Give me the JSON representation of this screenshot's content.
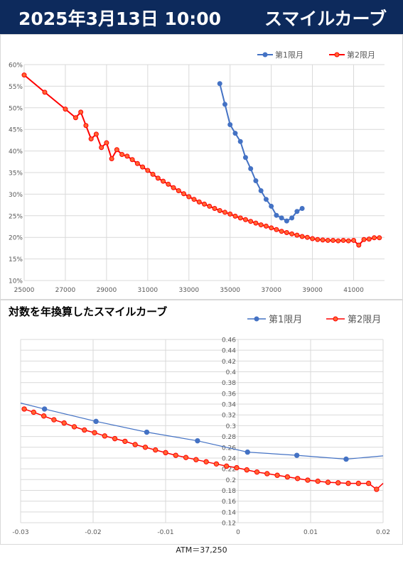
{
  "header": {
    "date": "2025年3月13日 10:00",
    "title": "スマイルカーブ"
  },
  "colors": {
    "header_bg": "#0d2a5c",
    "series_1": "#4472c4",
    "series_2": "#ff0000",
    "series_2_marker_fill": "#ff6633",
    "grid": "#d9d9d9"
  },
  "chart_data": [
    {
      "type": "line",
      "title": "",
      "xlabel": "",
      "ylabel": "",
      "xlim": [
        25000,
        42500
      ],
      "ylim": [
        0.1,
        0.6
      ],
      "x_ticks": [
        25000,
        27000,
        29000,
        31000,
        33000,
        35000,
        37000,
        39000,
        41000
      ],
      "x_tick_labels": [
        "25000",
        "27000",
        "29000",
        "31000",
        "33000",
        "35000",
        "37000",
        "39000",
        "41000"
      ],
      "y_ticks": [
        0.1,
        0.15,
        0.2,
        0.25,
        0.3,
        0.35,
        0.4,
        0.45,
        0.5,
        0.55,
        0.6
      ],
      "y_tick_labels": [
        "10%",
        "15%",
        "20%",
        "25%",
        "30%",
        "35%",
        "40%",
        "45%",
        "50%",
        "55%",
        "60%"
      ],
      "grid": true,
      "legend": "top-right",
      "series": [
        {
          "name": "第1限月",
          "x": [
            34500,
            34750,
            35000,
            35250,
            35500,
            35750,
            36000,
            36250,
            36500,
            36750,
            37000,
            37250,
            37500,
            37750,
            38000,
            38250,
            38500
          ],
          "y": [
            0.556,
            0.508,
            0.461,
            0.441,
            0.422,
            0.385,
            0.359,
            0.331,
            0.308,
            0.288,
            0.272,
            0.251,
            0.245,
            0.238,
            0.245,
            0.26,
            0.267
          ]
        },
        {
          "name": "第2限月",
          "x": [
            25000,
            26000,
            27000,
            27500,
            27750,
            28000,
            28250,
            28500,
            28750,
            29000,
            29250,
            29500,
            29750,
            30000,
            30250,
            30500,
            30750,
            31000,
            31250,
            31500,
            31750,
            32000,
            32250,
            32500,
            32750,
            33000,
            33250,
            33500,
            33750,
            34000,
            34250,
            34500,
            34750,
            35000,
            35250,
            35500,
            35750,
            36000,
            36250,
            36500,
            36750,
            37000,
            37250,
            37500,
            37750,
            38000,
            38250,
            38500,
            38750,
            39000,
            39250,
            39500,
            39750,
            40000,
            40250,
            40500,
            40750,
            41000,
            41250,
            41500,
            41750,
            42000,
            42250
          ],
          "y": [
            0.576,
            0.536,
            0.497,
            0.477,
            0.49,
            0.459,
            0.428,
            0.439,
            0.408,
            0.419,
            0.382,
            0.403,
            0.392,
            0.388,
            0.38,
            0.371,
            0.363,
            0.355,
            0.346,
            0.337,
            0.33,
            0.323,
            0.315,
            0.308,
            0.301,
            0.294,
            0.288,
            0.282,
            0.277,
            0.272,
            0.267,
            0.262,
            0.258,
            0.254,
            0.249,
            0.245,
            0.241,
            0.237,
            0.233,
            0.229,
            0.226,
            0.222,
            0.218,
            0.214,
            0.211,
            0.208,
            0.205,
            0.202,
            0.2,
            0.197,
            0.195,
            0.194,
            0.193,
            0.193,
            0.192,
            0.193,
            0.192,
            0.193,
            0.182,
            0.195,
            0.196,
            0.199,
            0.199
          ]
        }
      ]
    },
    {
      "type": "line",
      "title": "対数を年換算したスマイルカーブ",
      "xlabel": "ATM＝37,250",
      "ylabel": "",
      "xlim": [
        -0.03,
        0.02
      ],
      "ylim": [
        0.12,
        0.46
      ],
      "x_ticks": [
        -0.03,
        -0.02,
        -0.01,
        0,
        0.01,
        0.02
      ],
      "x_tick_labels": [
        "-0.03",
        "-0.02",
        "-0.01",
        "0",
        "0.01",
        "0.02"
      ],
      "y_ticks": [
        0.12,
        0.14,
        0.16,
        0.18,
        0.2,
        0.22,
        0.24,
        0.26,
        0.28,
        0.3,
        0.32,
        0.34,
        0.36,
        0.38,
        0.4,
        0.42,
        0.44,
        0.46
      ],
      "y_tick_labels": [
        "0.12",
        "0.14",
        "0.16",
        "0.18",
        "0.2",
        "0.22",
        "0.24",
        "0.26",
        "0.28",
        "0.3",
        "0.32",
        "0.34",
        "0.36",
        "0.38",
        "0.4",
        "0.42",
        "0.44",
        "0.46"
      ],
      "grid": true,
      "legend": "top-right",
      "series": [
        {
          "name": "第1限月",
          "x": [
            -0.03,
            -0.0267,
            -0.0196,
            -0.0126,
            -0.0056,
            0.0013,
            0.0081,
            0.0149,
            0.02
          ],
          "y": [
            0.342,
            0.331,
            0.308,
            0.288,
            0.272,
            0.251,
            0.245,
            0.238,
            0.244
          ]
        },
        {
          "name": "第2限月",
          "x": [
            -0.0295,
            -0.0282,
            -0.0268,
            -0.0254,
            -0.024,
            -0.0226,
            -0.0212,
            -0.0198,
            -0.0184,
            -0.017,
            -0.0156,
            -0.0142,
            -0.0128,
            -0.0114,
            -0.01,
            -0.0086,
            -0.0072,
            -0.0058,
            -0.0044,
            -0.003,
            -0.0016,
            -0.0002,
            0.0012,
            0.0026,
            0.004,
            0.0054,
            0.0068,
            0.0082,
            0.0096,
            0.011,
            0.0124,
            0.0138,
            0.0152,
            0.0166,
            0.018,
            0.0191,
            0.02
          ],
          "y": [
            0.331,
            0.325,
            0.318,
            0.311,
            0.305,
            0.298,
            0.292,
            0.287,
            0.281,
            0.276,
            0.271,
            0.265,
            0.26,
            0.255,
            0.25,
            0.245,
            0.241,
            0.237,
            0.233,
            0.229,
            0.225,
            0.222,
            0.218,
            0.214,
            0.211,
            0.208,
            0.205,
            0.202,
            0.199,
            0.197,
            0.195,
            0.194,
            0.193,
            0.193,
            0.193,
            0.182,
            0.193
          ]
        }
      ]
    }
  ]
}
